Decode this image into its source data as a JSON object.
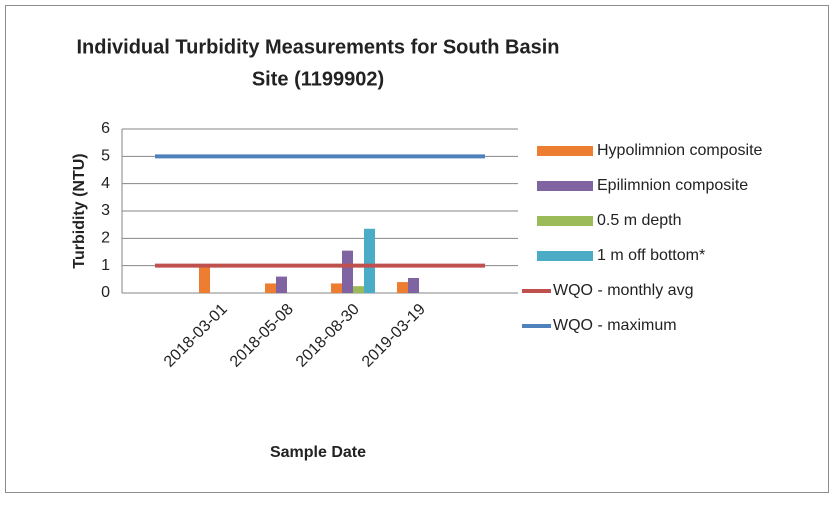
{
  "chart_data": {
    "type": "bar",
    "title": [
      "Individual Turbidity Measurements for South Basin",
      "Site (1199902)"
    ],
    "x_label": "Sample Date",
    "y_label": "Turbidity (NTU)",
    "categories": [
      null,
      "2018-03-01",
      "2018-05-08",
      "2018-08-30",
      "2019-03-19",
      null
    ],
    "series": [
      {
        "name": "Hypolimnion composite",
        "type": "bar",
        "color": "#ED7D31",
        "values": [
          null,
          1.0,
          0.35,
          0.35,
          0.4,
          null
        ]
      },
      {
        "name": "Epilimnion composite",
        "type": "bar",
        "color": "#8064A2",
        "values": [
          null,
          null,
          0.6,
          1.55,
          0.55,
          null
        ]
      },
      {
        "name": "0.5 m depth",
        "type": "bar",
        "color": "#9BBB59",
        "values": [
          null,
          null,
          null,
          0.25,
          null,
          null
        ]
      },
      {
        "name": "1 m off bottom*",
        "type": "bar",
        "color": "#4BACC6",
        "values": [
          null,
          null,
          null,
          2.35,
          null,
          null
        ]
      },
      {
        "name": "WQO - monthly avg",
        "type": "line",
        "color": "#C0504D",
        "values": [
          1,
          1,
          1,
          1,
          1,
          1
        ]
      },
      {
        "name": "WQO - maximum",
        "type": "line",
        "color": "#4F81BD",
        "values": [
          5,
          5,
          5,
          5,
          5,
          5
        ]
      }
    ],
    "ylim": [
      0,
      6
    ],
    "yticks": [
      0,
      1,
      2,
      3,
      4,
      5,
      6
    ],
    "grid": true,
    "legend": "right"
  }
}
